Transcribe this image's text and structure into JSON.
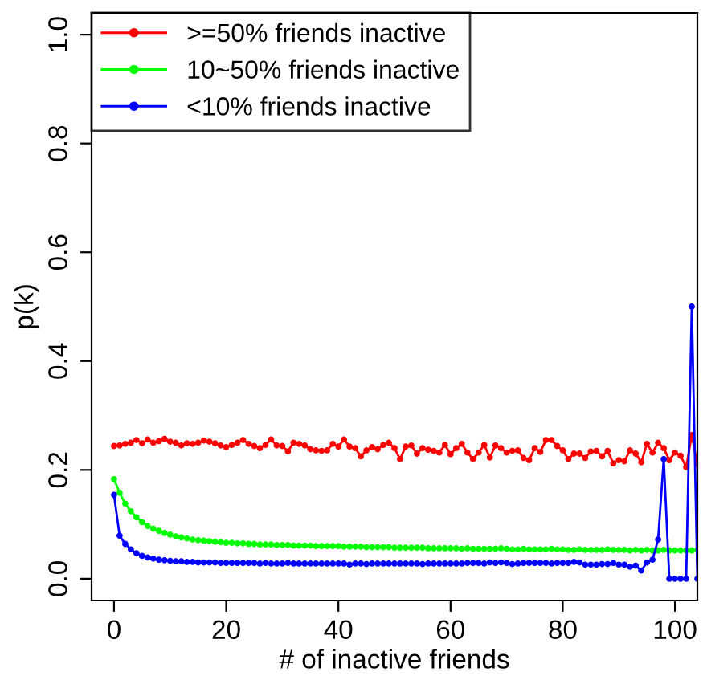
{
  "chart_data": {
    "type": "line",
    "xlabel": "# of inactive friends",
    "ylabel": "p(k)",
    "x": [
      0,
      1,
      2,
      3,
      4,
      5,
      6,
      7,
      8,
      9,
      10,
      11,
      12,
      13,
      14,
      15,
      16,
      17,
      18,
      19,
      20,
      21,
      22,
      23,
      24,
      25,
      26,
      27,
      28,
      29,
      30,
      31,
      32,
      33,
      34,
      35,
      36,
      37,
      38,
      39,
      40,
      41,
      42,
      43,
      44,
      45,
      46,
      47,
      48,
      49,
      50,
      51,
      52,
      53,
      54,
      55,
      56,
      57,
      58,
      59,
      60,
      61,
      62,
      63,
      64,
      65,
      66,
      67,
      68,
      69,
      70,
      71,
      72,
      73,
      74,
      75,
      76,
      77,
      78,
      79,
      80,
      81,
      82,
      83,
      84,
      85,
      86,
      87,
      88,
      89,
      90,
      91,
      92,
      93,
      94,
      95,
      96,
      97,
      98,
      99,
      100,
      101,
      102,
      103,
      104
    ],
    "series": [
      {
        "name": ">=50% friends inactive",
        "color": "#ff0000",
        "values": [
          0.244,
          0.245,
          0.248,
          0.25,
          0.255,
          0.249,
          0.256,
          0.25,
          0.253,
          0.257,
          0.252,
          0.25,
          0.245,
          0.249,
          0.248,
          0.25,
          0.254,
          0.252,
          0.249,
          0.245,
          0.242,
          0.246,
          0.25,
          0.255,
          0.248,
          0.244,
          0.24,
          0.246,
          0.256,
          0.245,
          0.244,
          0.234,
          0.25,
          0.248,
          0.245,
          0.238,
          0.236,
          0.235,
          0.236,
          0.248,
          0.243,
          0.256,
          0.243,
          0.24,
          0.225,
          0.236,
          0.242,
          0.238,
          0.246,
          0.25,
          0.24,
          0.22,
          0.243,
          0.245,
          0.23,
          0.24,
          0.237,
          0.235,
          0.232,
          0.246,
          0.229,
          0.24,
          0.248,
          0.232,
          0.22,
          0.232,
          0.246,
          0.223,
          0.245,
          0.24,
          0.232,
          0.235,
          0.236,
          0.222,
          0.218,
          0.24,
          0.233,
          0.255,
          0.255,
          0.244,
          0.236,
          0.22,
          0.23,
          0.23,
          0.222,
          0.234,
          0.235,
          0.225,
          0.235,
          0.212,
          0.218,
          0.216,
          0.236,
          0.23,
          0.214,
          0.248,
          0.232,
          0.25,
          0.24,
          0.218,
          0.232,
          0.226,
          0.205,
          0.264,
          0.21
        ]
      },
      {
        "name": "10~50% friends inactive",
        "color": "#00ff00",
        "values": [
          0.183,
          0.158,
          0.138,
          0.124,
          0.113,
          0.104,
          0.097,
          0.092,
          0.088,
          0.084,
          0.081,
          0.078,
          0.076,
          0.074,
          0.072,
          0.071,
          0.07,
          0.069,
          0.068,
          0.067,
          0.066,
          0.066,
          0.065,
          0.065,
          0.064,
          0.064,
          0.063,
          0.063,
          0.063,
          0.062,
          0.062,
          0.062,
          0.061,
          0.061,
          0.061,
          0.061,
          0.06,
          0.06,
          0.06,
          0.06,
          0.06,
          0.059,
          0.059,
          0.059,
          0.059,
          0.058,
          0.058,
          0.058,
          0.058,
          0.058,
          0.057,
          0.057,
          0.057,
          0.057,
          0.057,
          0.057,
          0.056,
          0.056,
          0.056,
          0.056,
          0.056,
          0.056,
          0.055,
          0.056,
          0.055,
          0.055,
          0.055,
          0.055,
          0.055,
          0.056,
          0.055,
          0.054,
          0.054,
          0.055,
          0.054,
          0.054,
          0.054,
          0.054,
          0.055,
          0.054,
          0.054,
          0.053,
          0.053,
          0.054,
          0.053,
          0.053,
          0.053,
          0.053,
          0.054,
          0.053,
          0.053,
          0.053,
          0.052,
          0.053,
          0.052,
          0.053,
          0.052,
          0.052,
          0.053,
          0.052,
          0.052,
          0.052,
          0.052,
          0.052,
          0.053
        ]
      },
      {
        "name": "<10% friends inactive",
        "color": "#0000ff",
        "values": [
          0.154,
          0.079,
          0.064,
          0.054,
          0.047,
          0.042,
          0.039,
          0.037,
          0.035,
          0.034,
          0.033,
          0.032,
          0.032,
          0.031,
          0.031,
          0.03,
          0.03,
          0.03,
          0.03,
          0.029,
          0.029,
          0.029,
          0.029,
          0.029,
          0.029,
          0.029,
          0.028,
          0.029,
          0.028,
          0.028,
          0.028,
          0.029,
          0.028,
          0.028,
          0.028,
          0.028,
          0.028,
          0.028,
          0.028,
          0.028,
          0.028,
          0.028,
          0.026,
          0.028,
          0.028,
          0.027,
          0.028,
          0.028,
          0.028,
          0.028,
          0.028,
          0.028,
          0.028,
          0.028,
          0.028,
          0.027,
          0.028,
          0.028,
          0.028,
          0.028,
          0.028,
          0.028,
          0.028,
          0.029,
          0.029,
          0.029,
          0.028,
          0.03,
          0.029,
          0.03,
          0.029,
          0.027,
          0.028,
          0.029,
          0.029,
          0.029,
          0.029,
          0.029,
          0.028,
          0.029,
          0.029,
          0.029,
          0.031,
          0.03,
          0.026,
          0.026,
          0.026,
          0.027,
          0.027,
          0.029,
          0.026,
          0.026,
          0.022,
          0.024,
          0.015,
          0.03,
          0.035,
          0.072,
          0.22,
          0,
          0,
          0,
          0,
          0.5,
          0
        ]
      }
    ],
    "xlim": [
      -4,
      104
    ],
    "ylim": [
      -0.04,
      1.04
    ],
    "xticks": [
      0,
      20,
      40,
      60,
      80,
      100
    ],
    "yticks": [
      {
        "value": 0,
        "label": "0.0"
      },
      {
        "value": 0.2,
        "label": "0.2"
      },
      {
        "value": 0.4,
        "label": "0.4"
      },
      {
        "value": 0.6,
        "label": "0.6"
      },
      {
        "value": 0.8,
        "label": "0.8"
      },
      {
        "value": 1,
        "label": "1.0"
      }
    ],
    "grid": false,
    "legend": "top left",
    "marker": "circle",
    "line_style": "solid"
  }
}
